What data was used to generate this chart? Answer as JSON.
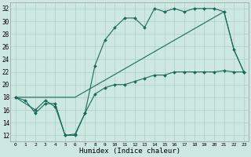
{
  "xlabel": "Humidex (Indice chaleur)",
  "background_color": "#cce8e0",
  "grid_color": "#aacfc8",
  "line_color": "#1a6b5a",
  "xlim": [
    -0.5,
    23.5
  ],
  "ylim": [
    11,
    33
  ],
  "xticks": [
    0,
    1,
    2,
    3,
    4,
    5,
    6,
    7,
    8,
    9,
    10,
    11,
    12,
    13,
    14,
    15,
    16,
    17,
    18,
    19,
    20,
    21,
    22,
    23
  ],
  "yticks": [
    12,
    14,
    16,
    18,
    20,
    22,
    24,
    26,
    28,
    30,
    32
  ],
  "line1_x": [
    0,
    1,
    2,
    3,
    4,
    5,
    6,
    7,
    8,
    9,
    10,
    11,
    12,
    13,
    14,
    15,
    16,
    17,
    18,
    19,
    20,
    21,
    22,
    23
  ],
  "line1_y": [
    18,
    17.5,
    15.5,
    17,
    17,
    12,
    12.2,
    15.5,
    18.5,
    19.5,
    20,
    20,
    20.5,
    21,
    21.5,
    21.5,
    22,
    22,
    22,
    22,
    22,
    22.2,
    22,
    22
  ],
  "line2_x": [
    0,
    5,
    6,
    21,
    22,
    23
  ],
  "line2_y": [
    18,
    18,
    18,
    31.5,
    25.5,
    22
  ],
  "line3_x": [
    0,
    2,
    3,
    4,
    5,
    6,
    7,
    8,
    9,
    10,
    11,
    12,
    13,
    14,
    15,
    16,
    17,
    18,
    19,
    20,
    21,
    22,
    23
  ],
  "line3_y": [
    18,
    16,
    17.5,
    16.5,
    12,
    12,
    15.5,
    23,
    27,
    29,
    30.5,
    30.5,
    29,
    32,
    31.5,
    32,
    31.5,
    32,
    32,
    32,
    31.5,
    25.5,
    22
  ]
}
